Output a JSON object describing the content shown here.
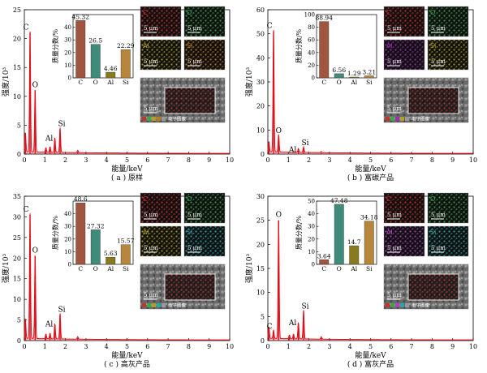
{
  "panels": [
    {
      "caption": "( a ) 原样",
      "xlabel": "能量/keV",
      "ylabel": "强度/10³",
      "xlim": [
        0,
        10
      ],
      "xticks": [
        0,
        1,
        2,
        3,
        4,
        5,
        6,
        7,
        8,
        9,
        10
      ],
      "ylim": [
        0,
        25
      ],
      "yticks": [
        0,
        5,
        10,
        15,
        20,
        25
      ],
      "peaks": [
        {
          "x": 0.05,
          "y": 3.5
        },
        {
          "x": 0.277,
          "y": 21.0
        },
        {
          "x": 0.525,
          "y": 11.0
        },
        {
          "x": 1.05,
          "y": 0.8
        },
        {
          "x": 1.25,
          "y": 1.0
        },
        {
          "x": 1.486,
          "y": 2.6
        },
        {
          "x": 1.74,
          "y": 4.3
        },
        {
          "x": 2.6,
          "y": 0.4
        }
      ],
      "peak_labels": [
        {
          "text": "C",
          "x": 0.277,
          "y": 21.0
        },
        {
          "text": "O",
          "x": 0.525,
          "y": 11.0
        },
        {
          "text": "Al",
          "x": 1.486,
          "y": 2.6
        },
        {
          "text": "Si",
          "x": 1.74,
          "y": 4.3
        }
      ],
      "bar_inset": {
        "ylabel": "质量分数/%",
        "categories": [
          "C",
          "O",
          "Al",
          "Si"
        ],
        "values": [
          45.32,
          26.5,
          4.46,
          22.29
        ],
        "value_labels": [
          "45.32",
          "26.5",
          "4.46",
          "22.29"
        ],
        "ylim": [
          0,
          50
        ],
        "yticks": [
          0,
          10,
          20,
          30,
          40
        ]
      },
      "maps": [
        {
          "label": "C",
          "color": "#c8322d"
        },
        {
          "label": "O",
          "color": "#39a84a"
        },
        {
          "label": "Al",
          "color": "#b0a020"
        },
        {
          "label": "Si",
          "color": "#c07a1e"
        }
      ],
      "scale_label": "5 μm",
      "sem_legend": "电子图像"
    },
    {
      "caption": "( b ) 富碳产品",
      "xlabel": "能量/keV",
      "ylabel": "强度/10³",
      "xlim": [
        0,
        10
      ],
      "xticks": [
        0,
        1,
        2,
        3,
        4,
        5,
        6,
        7,
        8,
        9,
        10
      ],
      "ylim": [
        0,
        60
      ],
      "yticks": [
        0,
        10,
        20,
        30,
        40,
        50,
        60
      ],
      "peaks": [
        {
          "x": 0.05,
          "y": 4.5
        },
        {
          "x": 0.277,
          "y": 51.0
        },
        {
          "x": 0.525,
          "y": 7.5
        },
        {
          "x": 1.486,
          "y": 1.6
        },
        {
          "x": 1.74,
          "y": 2.3
        },
        {
          "x": 2.6,
          "y": 0.5
        }
      ],
      "peak_labels": [
        {
          "text": "C",
          "x": 0.277,
          "y": 51.0
        },
        {
          "text": "O",
          "x": 0.525,
          "y": 7.5
        },
        {
          "text": "Al",
          "x": 1.486,
          "y": 1.6
        },
        {
          "text": "Si",
          "x": 1.74,
          "y": 2.3
        }
      ],
      "bar_inset": {
        "ylabel": "质量分数/%",
        "categories": [
          "C",
          "O",
          "Al",
          "Si"
        ],
        "values": [
          88.94,
          6.56,
          1.29,
          3.21
        ],
        "value_labels": [
          "88.94",
          "6.56",
          "1.29",
          "3.21"
        ],
        "ylim": [
          0,
          100
        ],
        "yticks": [
          0,
          20,
          40,
          60,
          80,
          100
        ]
      },
      "maps": [
        {
          "label": "C",
          "color": "#c8322d"
        },
        {
          "label": "O",
          "color": "#39a84a"
        },
        {
          "label": "Al",
          "color": "#a02cb4"
        },
        {
          "label": "Si",
          "color": "#b0a020"
        }
      ],
      "scale_label": "5 μm",
      "sem_legend": "电子图像"
    },
    {
      "caption": "( c ) 高灰产品",
      "xlabel": "能量/keV",
      "ylabel": "强度/10³",
      "xlim": [
        0,
        10
      ],
      "xticks": [
        0,
        1,
        2,
        3,
        4,
        5,
        6,
        7,
        8,
        9,
        10
      ],
      "ylim": [
        0,
        35
      ],
      "yticks": [
        0,
        5,
        10,
        15,
        20,
        25,
        30,
        35
      ],
      "peaks": [
        {
          "x": 0.05,
          "y": 5.0
        },
        {
          "x": 0.277,
          "y": 30.5
        },
        {
          "x": 0.525,
          "y": 20.5
        },
        {
          "x": 1.05,
          "y": 1.2
        },
        {
          "x": 1.25,
          "y": 1.4
        },
        {
          "x": 1.486,
          "y": 3.8
        },
        {
          "x": 1.74,
          "y": 6.2
        },
        {
          "x": 2.6,
          "y": 0.6
        }
      ],
      "peak_labels": [
        {
          "text": "C",
          "x": 0.277,
          "y": 30.5
        },
        {
          "text": "O",
          "x": 0.525,
          "y": 20.5
        },
        {
          "text": "Al",
          "x": 1.486,
          "y": 3.8
        },
        {
          "text": "Si",
          "x": 1.74,
          "y": 6.2
        }
      ],
      "bar_inset": {
        "ylabel": "质量分数/%",
        "categories": [
          "C",
          "O",
          "Al",
          "Si"
        ],
        "values": [
          48.6,
          27.32,
          5.63,
          15.57
        ],
        "value_labels": [
          "48.6",
          "27.32",
          "5.63",
          "15.57"
        ],
        "ylim": [
          0,
          50
        ],
        "yticks": [
          0,
          10,
          20,
          30,
          40
        ]
      },
      "maps": [
        {
          "label": "C",
          "color": "#c8322d"
        },
        {
          "label": "O",
          "color": "#39a84a"
        },
        {
          "label": "Al",
          "color": "#b0a020"
        },
        {
          "label": "Si",
          "color": "#2aa6a6"
        }
      ],
      "scale_label": "5 μm",
      "sem_legend": "电子图像"
    },
    {
      "caption": "( d ) 富灰产品",
      "xlabel": "能量/keV",
      "ylabel": "强度/10³",
      "xlim": [
        0,
        10
      ],
      "xticks": [
        0,
        1,
        2,
        3,
        4,
        5,
        6,
        7,
        8,
        9,
        10
      ],
      "ylim": [
        0,
        30
      ],
      "yticks": [
        0,
        5,
        10,
        15,
        20,
        25,
        30
      ],
      "peaks": [
        {
          "x": 0.05,
          "y": 2.5
        },
        {
          "x": 0.277,
          "y": 1.8
        },
        {
          "x": 0.525,
          "y": 25.0
        },
        {
          "x": 1.05,
          "y": 0.8
        },
        {
          "x": 1.25,
          "y": 1.0
        },
        {
          "x": 1.486,
          "y": 3.5
        },
        {
          "x": 1.74,
          "y": 6.0
        },
        {
          "x": 2.6,
          "y": 0.5
        }
      ],
      "peak_labels": [
        {
          "text": "C",
          "x": 0.277,
          "y": 1.8
        },
        {
          "text": "O",
          "x": 0.525,
          "y": 25.0
        },
        {
          "text": "Al",
          "x": 1.486,
          "y": 3.5
        },
        {
          "text": "Si",
          "x": 1.74,
          "y": 6.0
        }
      ],
      "bar_inset": {
        "ylabel": "质量分数/%",
        "categories": [
          "C",
          "O",
          "Al",
          "Si"
        ],
        "values": [
          3.64,
          47.48,
          14.7,
          34.18
        ],
        "value_labels": [
          "3.64",
          "47.48",
          "14.7",
          "34.18"
        ],
        "ylim": [
          0,
          50
        ],
        "yticks": [
          0,
          10,
          20,
          30,
          40,
          50
        ]
      },
      "maps": [
        {
          "label": "C",
          "color": "#c8322d"
        },
        {
          "label": "O",
          "color": "#39a84a"
        },
        {
          "label": "Al",
          "color": "#b040c0"
        },
        {
          "label": "Si",
          "color": "#2aa6a6"
        }
      ],
      "scale_label": "5 μm",
      "sem_legend": "电子图像"
    }
  ],
  "bar_colors": [
    "#a0553f",
    "#3f8a78",
    "#8a7a1e",
    "#b8863a"
  ],
  "spectrum_color": "#e0101a",
  "chart_data": [
    {
      "type": "line",
      "panel": "a",
      "title": "( a ) 原样",
      "xlabel": "能量/keV",
      "ylabel": "强度/10³",
      "xlim": [
        0,
        10
      ],
      "ylim": [
        0,
        25
      ],
      "x": [
        0.05,
        0.277,
        0.525,
        1.05,
        1.25,
        1.486,
        1.74,
        2.6
      ],
      "values": [
        3.5,
        21.0,
        11.0,
        0.8,
        1.0,
        2.6,
        4.3,
        0.4
      ]
    },
    {
      "type": "bar",
      "panel": "a-inset",
      "ylabel": "质量分数/%",
      "categories": [
        "C",
        "O",
        "Al",
        "Si"
      ],
      "values": [
        45.32,
        26.5,
        4.46,
        22.29
      ],
      "ylim": [
        0,
        50
      ]
    },
    {
      "type": "line",
      "panel": "b",
      "title": "( b ) 富碳产品",
      "xlabel": "能量/keV",
      "ylabel": "强度/10³",
      "xlim": [
        0,
        10
      ],
      "ylim": [
        0,
        60
      ],
      "x": [
        0.05,
        0.277,
        0.525,
        1.486,
        1.74,
        2.6
      ],
      "values": [
        4.5,
        51.0,
        7.5,
        1.6,
        2.3,
        0.5
      ]
    },
    {
      "type": "bar",
      "panel": "b-inset",
      "ylabel": "质量分数/%",
      "categories": [
        "C",
        "O",
        "Al",
        "Si"
      ],
      "values": [
        88.94,
        6.56,
        1.29,
        3.21
      ],
      "ylim": [
        0,
        100
      ]
    },
    {
      "type": "line",
      "panel": "c",
      "title": "( c ) 高灰产品",
      "xlabel": "能量/keV",
      "ylabel": "强度/10³",
      "xlim": [
        0,
        10
      ],
      "ylim": [
        0,
        35
      ],
      "x": [
        0.05,
        0.277,
        0.525,
        1.05,
        1.25,
        1.486,
        1.74,
        2.6
      ],
      "values": [
        5.0,
        30.5,
        20.5,
        1.2,
        1.4,
        3.8,
        6.2,
        0.6
      ]
    },
    {
      "type": "bar",
      "panel": "c-inset",
      "ylabel": "质量分数/%",
      "categories": [
        "C",
        "O",
        "Al",
        "Si"
      ],
      "values": [
        48.6,
        27.32,
        5.63,
        15.57
      ],
      "ylim": [
        0,
        50
      ]
    },
    {
      "type": "line",
      "panel": "d",
      "title": "( d ) 富灰产品",
      "xlabel": "能量/keV",
      "ylabel": "强度/10³",
      "xlim": [
        0,
        10
      ],
      "ylim": [
        0,
        30
      ],
      "x": [
        0.05,
        0.277,
        0.525,
        1.05,
        1.25,
        1.486,
        1.74,
        2.6
      ],
      "values": [
        2.5,
        1.8,
        25.0,
        0.8,
        1.0,
        3.5,
        6.0,
        0.5
      ]
    },
    {
      "type": "bar",
      "panel": "d-inset",
      "ylabel": "质量分数/%",
      "categories": [
        "C",
        "O",
        "Al",
        "Si"
      ],
      "values": [
        3.64,
        47.48,
        14.7,
        34.18
      ],
      "ylim": [
        0,
        50
      ]
    }
  ]
}
